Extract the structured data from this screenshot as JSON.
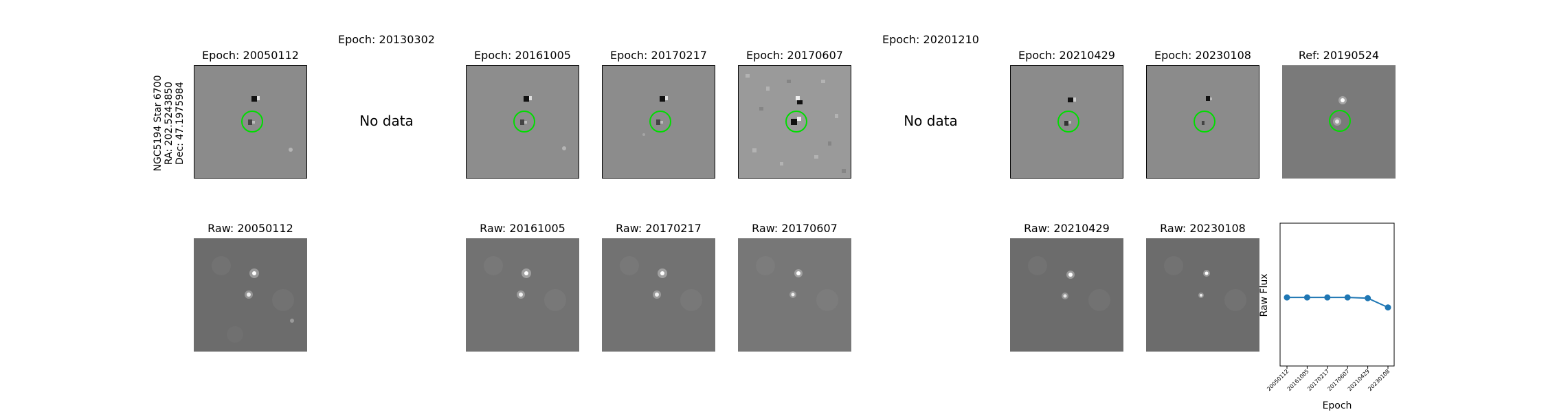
{
  "target": {
    "line1": "NGC5194 Star 6700",
    "line2": "RA: 202.5243850",
    "line3": "Dec: 47.1975984"
  },
  "diff_titles": [
    "Epoch: 20050112",
    "Epoch: 20130302",
    "Epoch: 20161005",
    "Epoch: 20170217",
    "Epoch: 20170607",
    "Epoch: 20201210",
    "Epoch: 20210429",
    "Epoch: 20230108"
  ],
  "ref_title": "Ref: 20190524",
  "no_data_text": "No data",
  "raw_titles": [
    "Raw: 20050112",
    "Raw: 20161005",
    "Raw: 20170217",
    "Raw: 20170607",
    "Raw: 20210429",
    "Raw: 20230108"
  ],
  "colors": {
    "circle": "#00dd00",
    "line": "#1f77b4",
    "diff_bg": "#8a8a8a",
    "raw_bg": "#6e6e6e"
  },
  "chart_data": {
    "type": "line",
    "categories": [
      "20050112",
      "20161005",
      "20170217",
      "20170607",
      "20210429",
      "20230108"
    ],
    "values": [
      0.48,
      0.48,
      0.48,
      0.48,
      0.475,
      0.41
    ],
    "xlabel": "Epoch",
    "ylabel": "Raw Flux",
    "ylim": [
      0,
      1
    ],
    "yticks_shown": false,
    "grid": false
  }
}
